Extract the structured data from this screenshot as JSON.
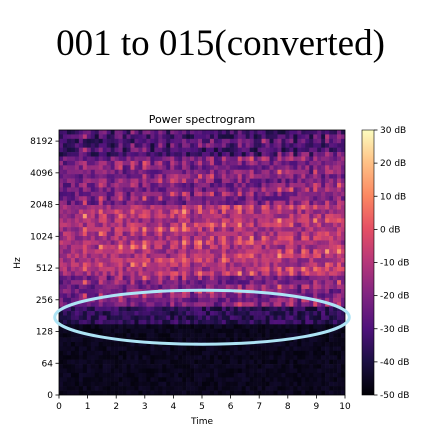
{
  "heading": "001 to 015(converted)",
  "chart_data": {
    "type": "heatmap",
    "title": "Power spectrogram",
    "xlabel": "Time",
    "ylabel": "Hz",
    "xlim": [
      0,
      10
    ],
    "x_ticks": [
      0,
      1,
      2,
      3,
      4,
      5,
      6,
      7,
      8,
      9,
      10
    ],
    "y_scale": "log2",
    "y_ticks": [
      0,
      64,
      128,
      256,
      512,
      1024,
      2048,
      4096,
      8192
    ],
    "colorbar": {
      "label_unit": "dB",
      "range": [
        -50,
        30
      ],
      "ticks": [
        "30 dB",
        "20 dB",
        "10 dB",
        "0 dB",
        "-10 dB",
        "-20 dB",
        "-30 dB",
        "-40 dB",
        "-50 dB"
      ],
      "colormap": "magma"
    },
    "annotation": {
      "shape": "ellipse",
      "color": "#aee4f5",
      "center_time": 5.0,
      "center_hz": 175,
      "time_span": [
        -0.2,
        10.1
      ]
    }
  }
}
